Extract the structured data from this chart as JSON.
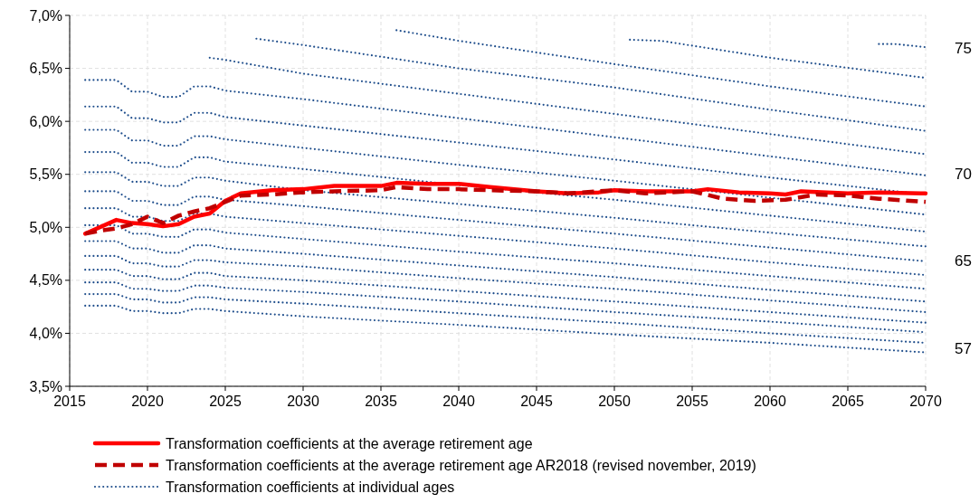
{
  "chart_data": {
    "type": "line",
    "xlim": [
      2015,
      2070
    ],
    "xticks": [
      2015,
      2020,
      2025,
      2030,
      2035,
      2040,
      2045,
      2050,
      2055,
      2060,
      2065,
      2070
    ],
    "ylim": [
      3.5,
      7.0
    ],
    "yticks": [
      {
        "value": 3.5,
        "label": "3,5%"
      },
      {
        "value": 4.0,
        "label": "4,0%"
      },
      {
        "value": 4.5,
        "label": "4,5%"
      },
      {
        "value": 5.0,
        "label": "5,0%"
      },
      {
        "value": 5.5,
        "label": "5,5%"
      },
      {
        "value": 6.0,
        "label": "6,0%"
      },
      {
        "value": 6.5,
        "label": "6,5%"
      },
      {
        "value": 7.0,
        "label": "7,0%"
      }
    ],
    "grid": true,
    "legend": "bottom",
    "x": [
      2016,
      2018,
      2019,
      2020,
      2021,
      2022,
      2023,
      2024,
      2025,
      2030,
      2040,
      2050,
      2060,
      2070
    ],
    "series": [
      {
        "name": "Transformation coefficients at the average retirement age",
        "color": "#ff0000",
        "line_style": "solid",
        "x": [
          2016,
          2018,
          2019,
          2020,
          2021,
          2022,
          2023,
          2024,
          2025,
          2026,
          2028,
          2030,
          2032,
          2035,
          2036,
          2038,
          2040,
          2042,
          2045,
          2047,
          2049,
          2050,
          2052,
          2055,
          2056,
          2058,
          2060,
          2061,
          2062,
          2065,
          2067,
          2070
        ],
        "values": [
          4.94,
          5.07,
          5.04,
          5.03,
          5.01,
          5.03,
          5.1,
          5.13,
          5.25,
          5.32,
          5.35,
          5.36,
          5.39,
          5.39,
          5.42,
          5.41,
          5.41,
          5.38,
          5.34,
          5.32,
          5.33,
          5.35,
          5.34,
          5.34,
          5.36,
          5.33,
          5.32,
          5.31,
          5.34,
          5.32,
          5.33,
          5.32
        ]
      },
      {
        "name": "Transformation coefficients at the average retirement age AR2018 (revised november, 2019)",
        "color": "#c00000",
        "line_style": "dashed",
        "x": [
          2016,
          2017,
          2018,
          2019,
          2020,
          2021,
          2022,
          2023,
          2024,
          2025,
          2026,
          2028,
          2030,
          2032,
          2035,
          2036,
          2038,
          2040,
          2042,
          2045,
          2047,
          2050,
          2052,
          2055,
          2057,
          2059,
          2061,
          2063,
          2065,
          2067,
          2069,
          2070
        ],
        "values": [
          4.94,
          4.97,
          4.99,
          5.03,
          5.1,
          5.04,
          5.11,
          5.15,
          5.18,
          5.24,
          5.3,
          5.31,
          5.33,
          5.34,
          5.35,
          5.38,
          5.36,
          5.36,
          5.35,
          5.34,
          5.32,
          5.35,
          5.32,
          5.34,
          5.27,
          5.25,
          5.26,
          5.31,
          5.3,
          5.27,
          5.25,
          5.24
        ]
      },
      {
        "name": "Transformation coefficients at individual ages",
        "color": "#1f4e8c",
        "line_style": "dotted",
        "values": [
          4.26,
          4.26,
          4.21,
          4.21,
          4.19,
          4.19,
          4.23,
          4.23,
          4.21,
          4.16,
          4.08,
          3.99,
          3.91,
          3.82
        ]
      },
      {
        "color": "#1f4e8c",
        "line_style": "dotted",
        "values": [
          4.37,
          4.37,
          4.32,
          4.32,
          4.29,
          4.29,
          4.34,
          4.34,
          4.32,
          4.28,
          4.19,
          4.1,
          4.0,
          3.91
        ]
      },
      {
        "color": "#1f4e8c",
        "line_style": "dotted",
        "values": [
          4.48,
          4.48,
          4.42,
          4.42,
          4.4,
          4.4,
          4.45,
          4.45,
          4.43,
          4.39,
          4.3,
          4.2,
          4.11,
          4.01
        ]
      },
      {
        "color": "#1f4e8c",
        "line_style": "dotted",
        "values": [
          4.6,
          4.6,
          4.54,
          4.54,
          4.51,
          4.51,
          4.57,
          4.57,
          4.54,
          4.5,
          4.4,
          4.3,
          4.2,
          4.1
        ]
      },
      {
        "color": "#1f4e8c",
        "line_style": "dotted",
        "values": [
          4.73,
          4.73,
          4.66,
          4.66,
          4.63,
          4.63,
          4.69,
          4.69,
          4.67,
          4.63,
          4.52,
          4.42,
          4.31,
          4.2
        ]
      },
      {
        "color": "#1f4e8c",
        "line_style": "dotted",
        "values": [
          4.87,
          4.87,
          4.8,
          4.8,
          4.76,
          4.76,
          4.83,
          4.83,
          4.8,
          4.75,
          4.64,
          4.53,
          4.41,
          4.3
        ]
      },
      {
        "color": "#1f4e8c",
        "line_style": "dotted",
        "values": [
          5.02,
          5.02,
          4.94,
          4.94,
          4.91,
          4.91,
          4.98,
          4.98,
          4.95,
          4.89,
          4.77,
          4.66,
          4.54,
          4.42
        ]
      },
      {
        "color": "#1f4e8c",
        "line_style": "dotted",
        "values": [
          5.18,
          5.18,
          5.1,
          5.1,
          5.06,
          5.06,
          5.13,
          5.13,
          5.1,
          5.04,
          4.92,
          4.8,
          4.67,
          4.55
        ]
      },
      {
        "color": "#1f4e8c",
        "line_style": "dotted",
        "values": [
          5.34,
          5.34,
          5.25,
          5.25,
          5.21,
          5.21,
          5.29,
          5.29,
          5.26,
          5.2,
          5.07,
          4.94,
          4.81,
          4.68
        ]
      },
      {
        "color": "#1f4e8c",
        "line_style": "dotted",
        "values": [
          5.52,
          5.52,
          5.43,
          5.43,
          5.39,
          5.39,
          5.47,
          5.47,
          5.44,
          5.35,
          5.22,
          5.09,
          4.95,
          4.82
        ]
      },
      {
        "color": "#1f4e8c",
        "line_style": "dotted",
        "values": [
          5.71,
          5.71,
          5.61,
          5.61,
          5.57,
          5.57,
          5.66,
          5.66,
          5.62,
          5.55,
          5.4,
          5.26,
          5.11,
          4.96
        ]
      },
      {
        "color": "#1f4e8c",
        "line_style": "dotted",
        "values": [
          5.92,
          5.92,
          5.82,
          5.82,
          5.77,
          5.77,
          5.86,
          5.86,
          5.83,
          5.75,
          5.59,
          5.44,
          5.28,
          5.12
        ]
      },
      {
        "color": "#1f4e8c",
        "line_style": "dotted",
        "values": [
          6.14,
          6.14,
          6.03,
          6.03,
          5.99,
          5.99,
          6.08,
          6.08,
          6.04,
          5.96,
          5.8,
          5.64,
          5.47,
          5.31
        ]
      },
      {
        "color": "#1f4e8c",
        "line_style": "dotted",
        "values": [
          6.39,
          6.39,
          6.28,
          6.28,
          6.23,
          6.23,
          6.33,
          6.33,
          6.29,
          6.21,
          6.03,
          5.85,
          5.67,
          5.49
        ]
      },
      {
        "color": "#1f4e8c",
        "line_style": "dotted",
        "values": [
          null,
          null,
          null,
          null,
          null,
          null,
          null,
          6.6,
          6.58,
          6.45,
          6.26,
          6.07,
          5.88,
          5.69
        ]
      },
      {
        "color": "#1f4e8c",
        "line_style": "dotted",
        "x": [
          2027,
          2030,
          2040,
          2050,
          2060,
          2070
        ],
        "values": [
          6.78,
          6.72,
          6.5,
          6.32,
          6.11,
          5.91
        ]
      },
      {
        "color": "#1f4e8c",
        "line_style": "dotted",
        "x": [
          2036,
          2040,
          2050,
          2060,
          2070
        ],
        "values": [
          6.86,
          6.76,
          6.54,
          6.33,
          6.14
        ]
      },
      {
        "color": "#1f4e8c",
        "line_style": "dotted",
        "x": [
          2051,
          2053,
          2060,
          2070
        ],
        "values": [
          6.77,
          6.76,
          6.6,
          6.41
        ]
      },
      {
        "color": "#1f4e8c",
        "line_style": "dotted",
        "x": [
          2067,
          2068,
          2070
        ],
        "values": [
          6.73,
          6.73,
          6.7
        ]
      }
    ],
    "annotations": [
      "75",
      "70",
      "65",
      "57"
    ]
  }
}
